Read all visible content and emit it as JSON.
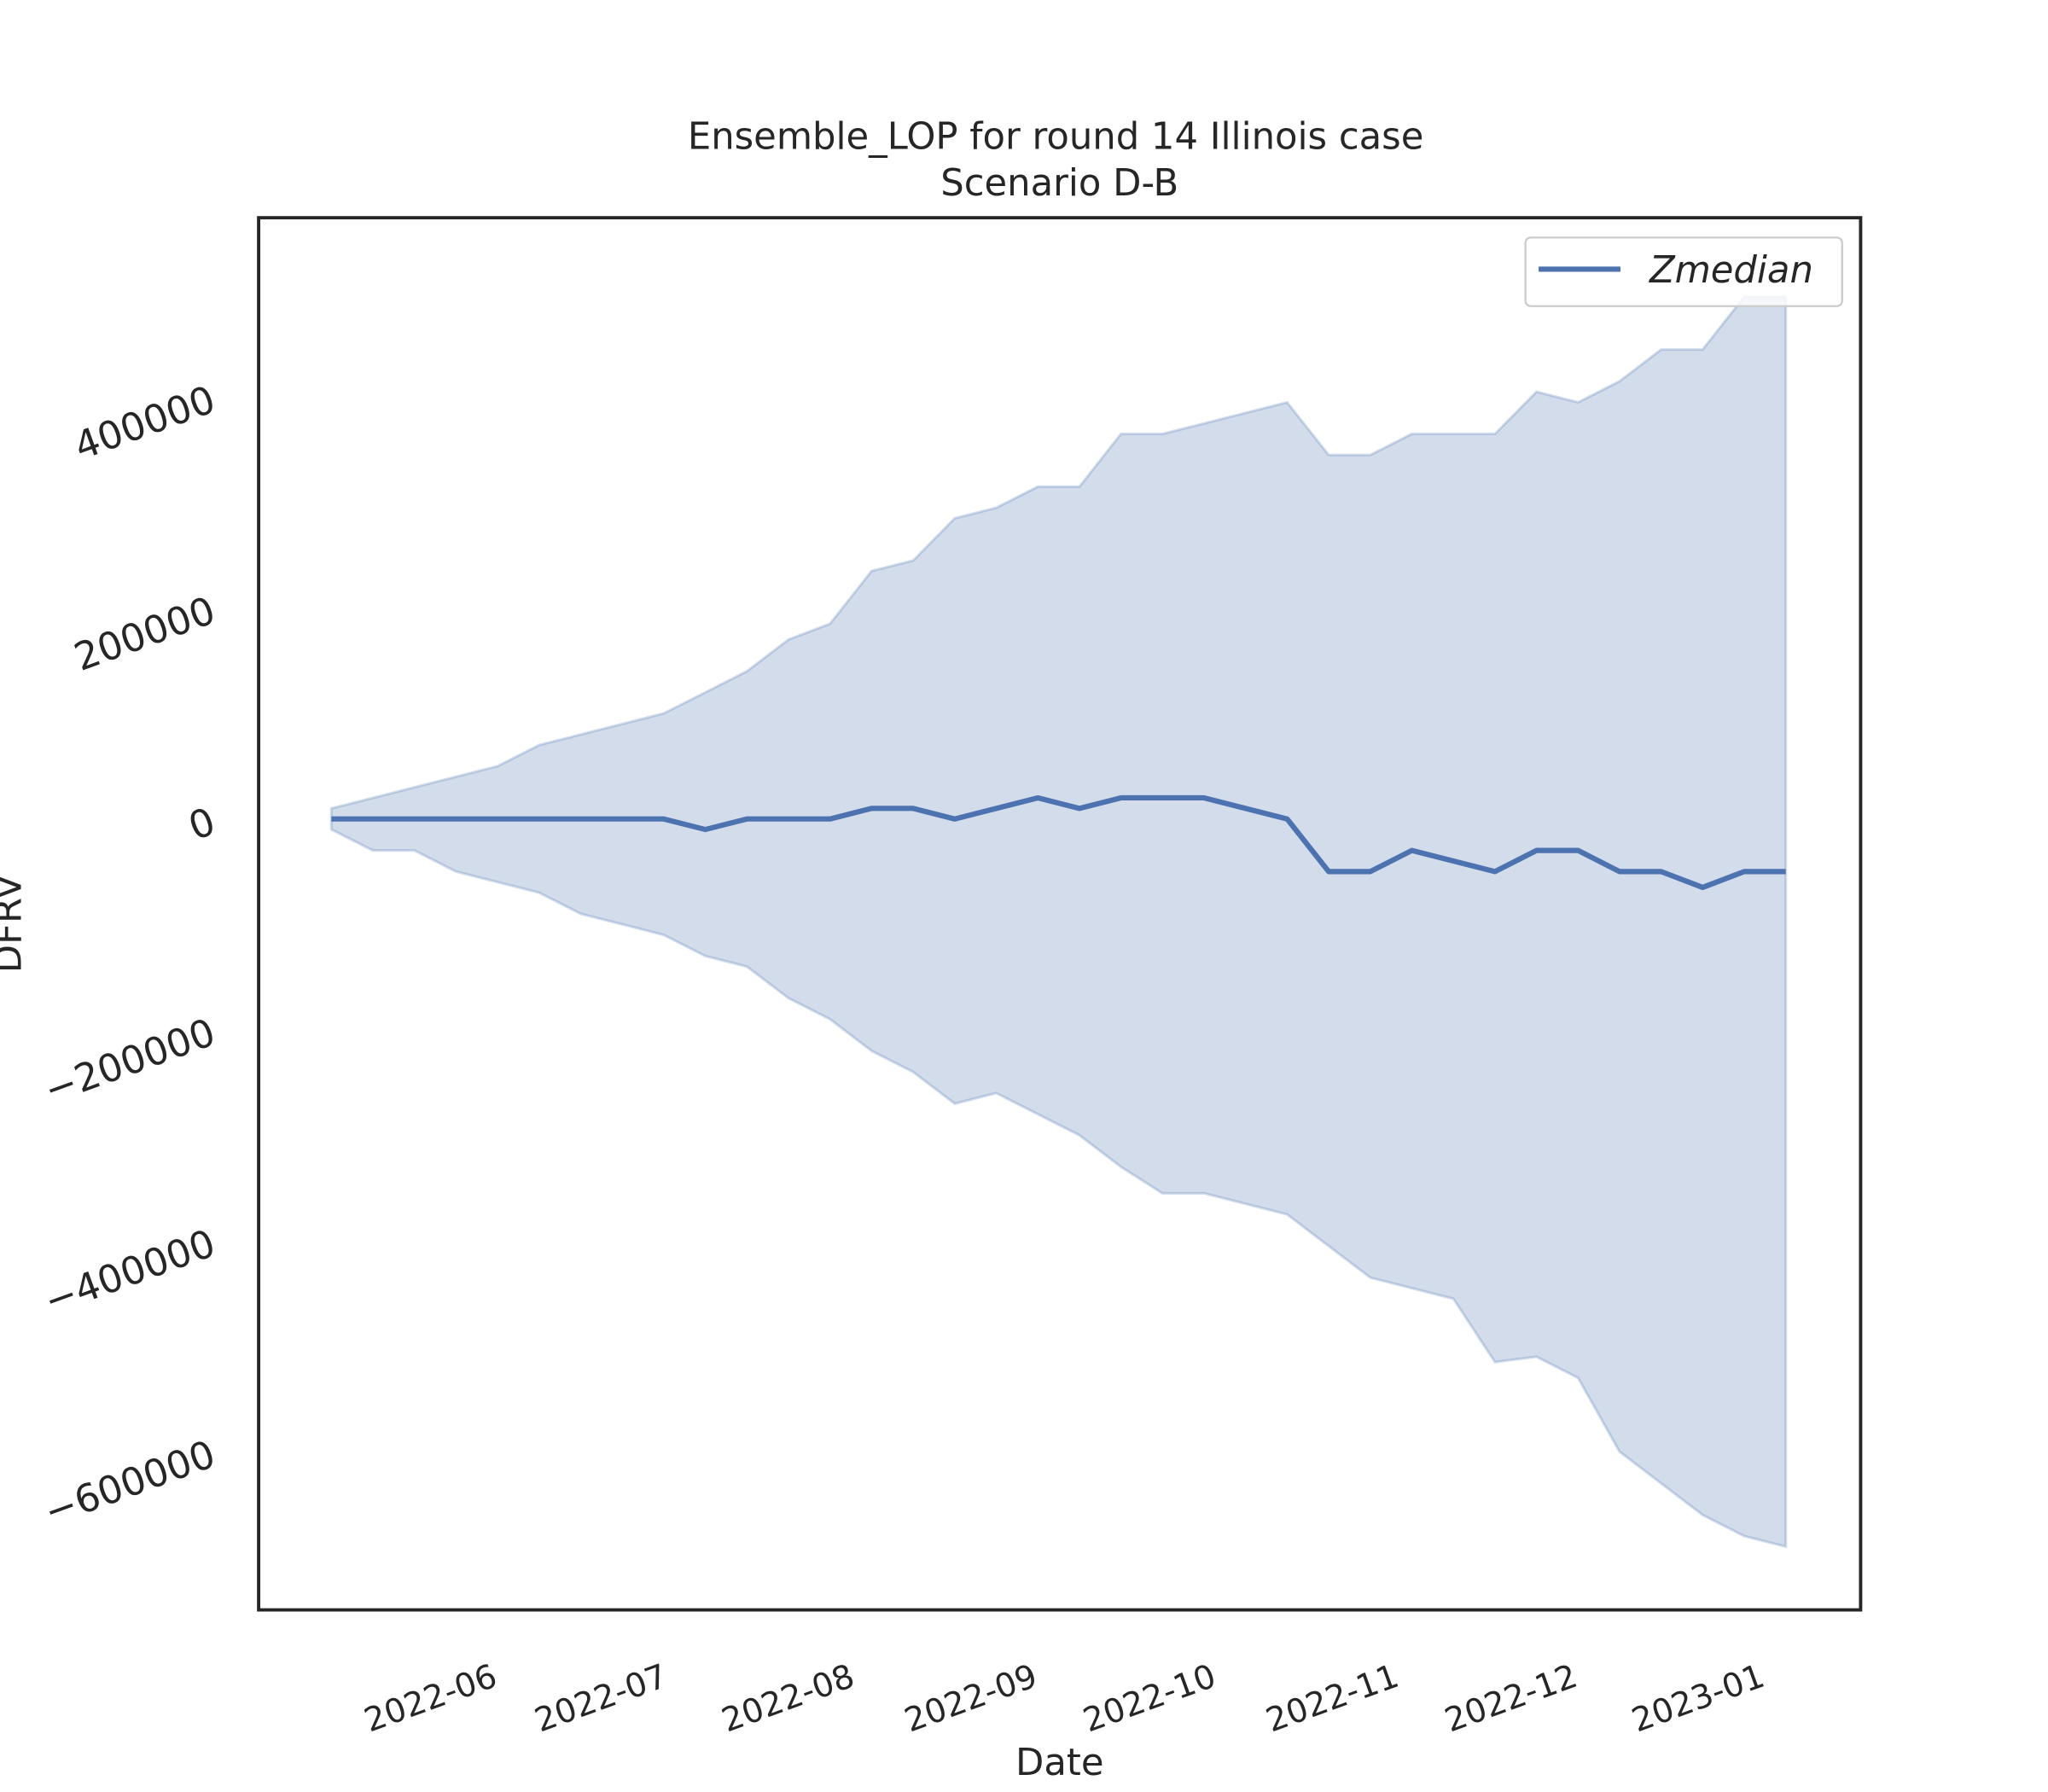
{
  "chart_data": {
    "type": "line",
    "title": "Ensemble_LOP for round 14 Illinois case",
    "subtitle": "Scenario D-B",
    "x_label": "Date",
    "y_label": "DFRV",
    "series": [
      {
        "name": "Zmedian",
        "color": "#4c72b0",
        "values": [
          0,
          0,
          0,
          0,
          0,
          0,
          0,
          0,
          0,
          -10000,
          0,
          0,
          0,
          10000,
          10000,
          0,
          10000,
          20000,
          10000,
          20000,
          20000,
          20000,
          10000,
          0,
          -50000,
          -50000,
          -30000,
          -40000,
          -50000,
          -30000,
          -30000,
          -50000,
          -50000,
          -65000,
          -50000,
          -50000
        ]
      }
    ],
    "band": {
      "color": "#4c72b0",
      "upper": [
        10000,
        20000,
        30000,
        40000,
        50000,
        70000,
        80000,
        90000,
        100000,
        120000,
        140000,
        170000,
        185000,
        235000,
        245000,
        285000,
        295000,
        315000,
        315000,
        365000,
        365000,
        375000,
        385000,
        395000,
        345000,
        345000,
        365000,
        365000,
        365000,
        405000,
        395000,
        415000,
        445000,
        445000,
        495000,
        495000
      ],
      "lower": [
        -10000,
        -30000,
        -30000,
        -50000,
        -60000,
        -70000,
        -90000,
        -100000,
        -110000,
        -130000,
        -140000,
        -170000,
        -190000,
        -220000,
        -240000,
        -270000,
        -260000,
        -280000,
        -300000,
        -330000,
        -355000,
        -355000,
        -365000,
        -375000,
        -405000,
        -435000,
        -445000,
        -455000,
        -515000,
        -510000,
        -530000,
        -600000,
        -630000,
        -660000,
        -680000,
        -690000
      ]
    },
    "xlim": [
      -1.75,
      36.8
    ],
    "xticks": [
      {
        "value": 4.1,
        "label": "2022-06"
      },
      {
        "value": 8.2,
        "label": "2022-07"
      },
      {
        "value": 12.7,
        "label": "2022-08"
      },
      {
        "value": 17.1,
        "label": "2022-09"
      },
      {
        "value": 21.4,
        "label": "2022-10"
      },
      {
        "value": 25.8,
        "label": "2022-11"
      },
      {
        "value": 30.1,
        "label": "2022-12"
      },
      {
        "value": 34.6,
        "label": "2023-01"
      }
    ],
    "ylim": [
      -750000,
      570000
    ],
    "yticks": [
      {
        "value": -600000,
        "label": "−600000"
      },
      {
        "value": -400000,
        "label": "−400000"
      },
      {
        "value": -200000,
        "label": "−200000"
      },
      0,
      200000,
      400000
    ],
    "legend": "upper right"
  }
}
